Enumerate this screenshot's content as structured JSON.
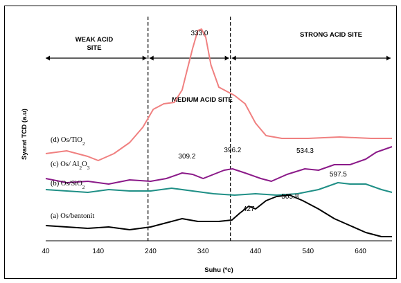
{
  "chart_data": {
    "type": "line",
    "xlabel": "Suhu (ºc)",
    "ylabel": "Syarat TCD (a.u)",
    "xlim": [
      40,
      700
    ],
    "xticks": [
      "40",
      "140",
      "240",
      "340",
      "440",
      "540",
      "640"
    ],
    "grid": false,
    "legend": "none",
    "regions": [
      {
        "label_lines": [
          "WEAK ACID",
          "SITE"
        ],
        "x_start": 40,
        "x_end": 235
      },
      {
        "label_lines": [
          "MEDIUM ACID SITE"
        ],
        "x_start": 235,
        "x_end": 392
      },
      {
        "label_lines": [
          "STRONG ACID SITE"
        ],
        "x_start": 392,
        "x_end": 700
      }
    ],
    "dividers": [
      235,
      392
    ],
    "peak_labels": [
      {
        "text": "333.0",
        "x": 333,
        "series": "d"
      },
      {
        "text": "309.2",
        "x": 309.2,
        "series": "c"
      },
      {
        "text": "396.2",
        "x": 396.2,
        "series": "c"
      },
      {
        "text": "534.3",
        "x": 534.3,
        "series": "c"
      },
      {
        "text": "597.5",
        "x": 597.5,
        "series": "b"
      },
      {
        "text": "427",
        "x": 427,
        "series": "a"
      },
      {
        "text": "505.8",
        "x": 505.8,
        "series": "a"
      }
    ],
    "series": [
      {
        "key": "d",
        "name": "(d) Os/TiO",
        "subscript": "2",
        "color": "#f08080",
        "x": [
          40,
          80,
          120,
          140,
          170,
          200,
          225,
          245,
          265,
          285,
          300,
          310,
          320,
          330,
          337,
          345,
          355,
          370,
          385,
          400,
          420,
          440,
          460,
          490,
          540,
          600,
          660,
          690,
          700
        ],
        "y": [
          0.2,
          0.22,
          0.18,
          0.15,
          0.2,
          0.28,
          0.39,
          0.52,
          0.56,
          0.57,
          0.66,
          0.81,
          0.96,
          1.09,
          1.1,
          1.04,
          0.84,
          0.68,
          0.65,
          0.62,
          0.56,
          0.42,
          0.33,
          0.31,
          0.31,
          0.32,
          0.31,
          0.31,
          0.31
        ]
      },
      {
        "key": "c",
        "name": "(c) Os/ Al",
        "subscript": "2",
        "name_tail": "O",
        "tail_subscript": "3",
        "color": "#8b1a89",
        "x": [
          40,
          80,
          120,
          160,
          200,
          240,
          270,
          300,
          320,
          340,
          360,
          380,
          396,
          420,
          450,
          470,
          500,
          534,
          560,
          590,
          620,
          650,
          670,
          700
        ],
        "y": [
          0.02,
          -0.01,
          0.0,
          -0.02,
          0.01,
          0.0,
          0.02,
          0.06,
          0.05,
          0.02,
          0.05,
          0.08,
          0.09,
          0.06,
          0.02,
          0.0,
          0.05,
          0.09,
          0.08,
          0.12,
          0.12,
          0.16,
          0.21,
          0.25
        ]
      },
      {
        "key": "b",
        "name": "(b) Os/SiO",
        "subscript": "2",
        "color": "#1f8f86",
        "x": [
          40,
          80,
          120,
          160,
          200,
          240,
          280,
          320,
          360,
          400,
          440,
          480,
          520,
          560,
          597,
          620,
          650,
          680,
          700
        ],
        "y": [
          -0.06,
          -0.07,
          -0.08,
          -0.06,
          -0.07,
          -0.07,
          -0.05,
          -0.07,
          -0.09,
          -0.1,
          -0.09,
          -0.1,
          -0.09,
          -0.06,
          -0.01,
          -0.02,
          -0.02,
          -0.06,
          -0.08
        ]
      },
      {
        "key": "a",
        "name": "(a) Os/bentonit",
        "subscript": "",
        "color": "#000000",
        "x": [
          40,
          80,
          120,
          160,
          200,
          240,
          270,
          300,
          330,
          370,
          395,
          410,
          427,
          440,
          460,
          480,
          505,
          530,
          560,
          590,
          620,
          650,
          680,
          700
        ],
        "y": [
          -0.32,
          -0.33,
          -0.34,
          -0.33,
          -0.35,
          -0.33,
          -0.3,
          -0.27,
          -0.29,
          -0.29,
          -0.28,
          -0.23,
          -0.18,
          -0.2,
          -0.14,
          -0.11,
          -0.1,
          -0.14,
          -0.2,
          -0.27,
          -0.32,
          -0.37,
          -0.4,
          -0.4
        ]
      }
    ]
  }
}
